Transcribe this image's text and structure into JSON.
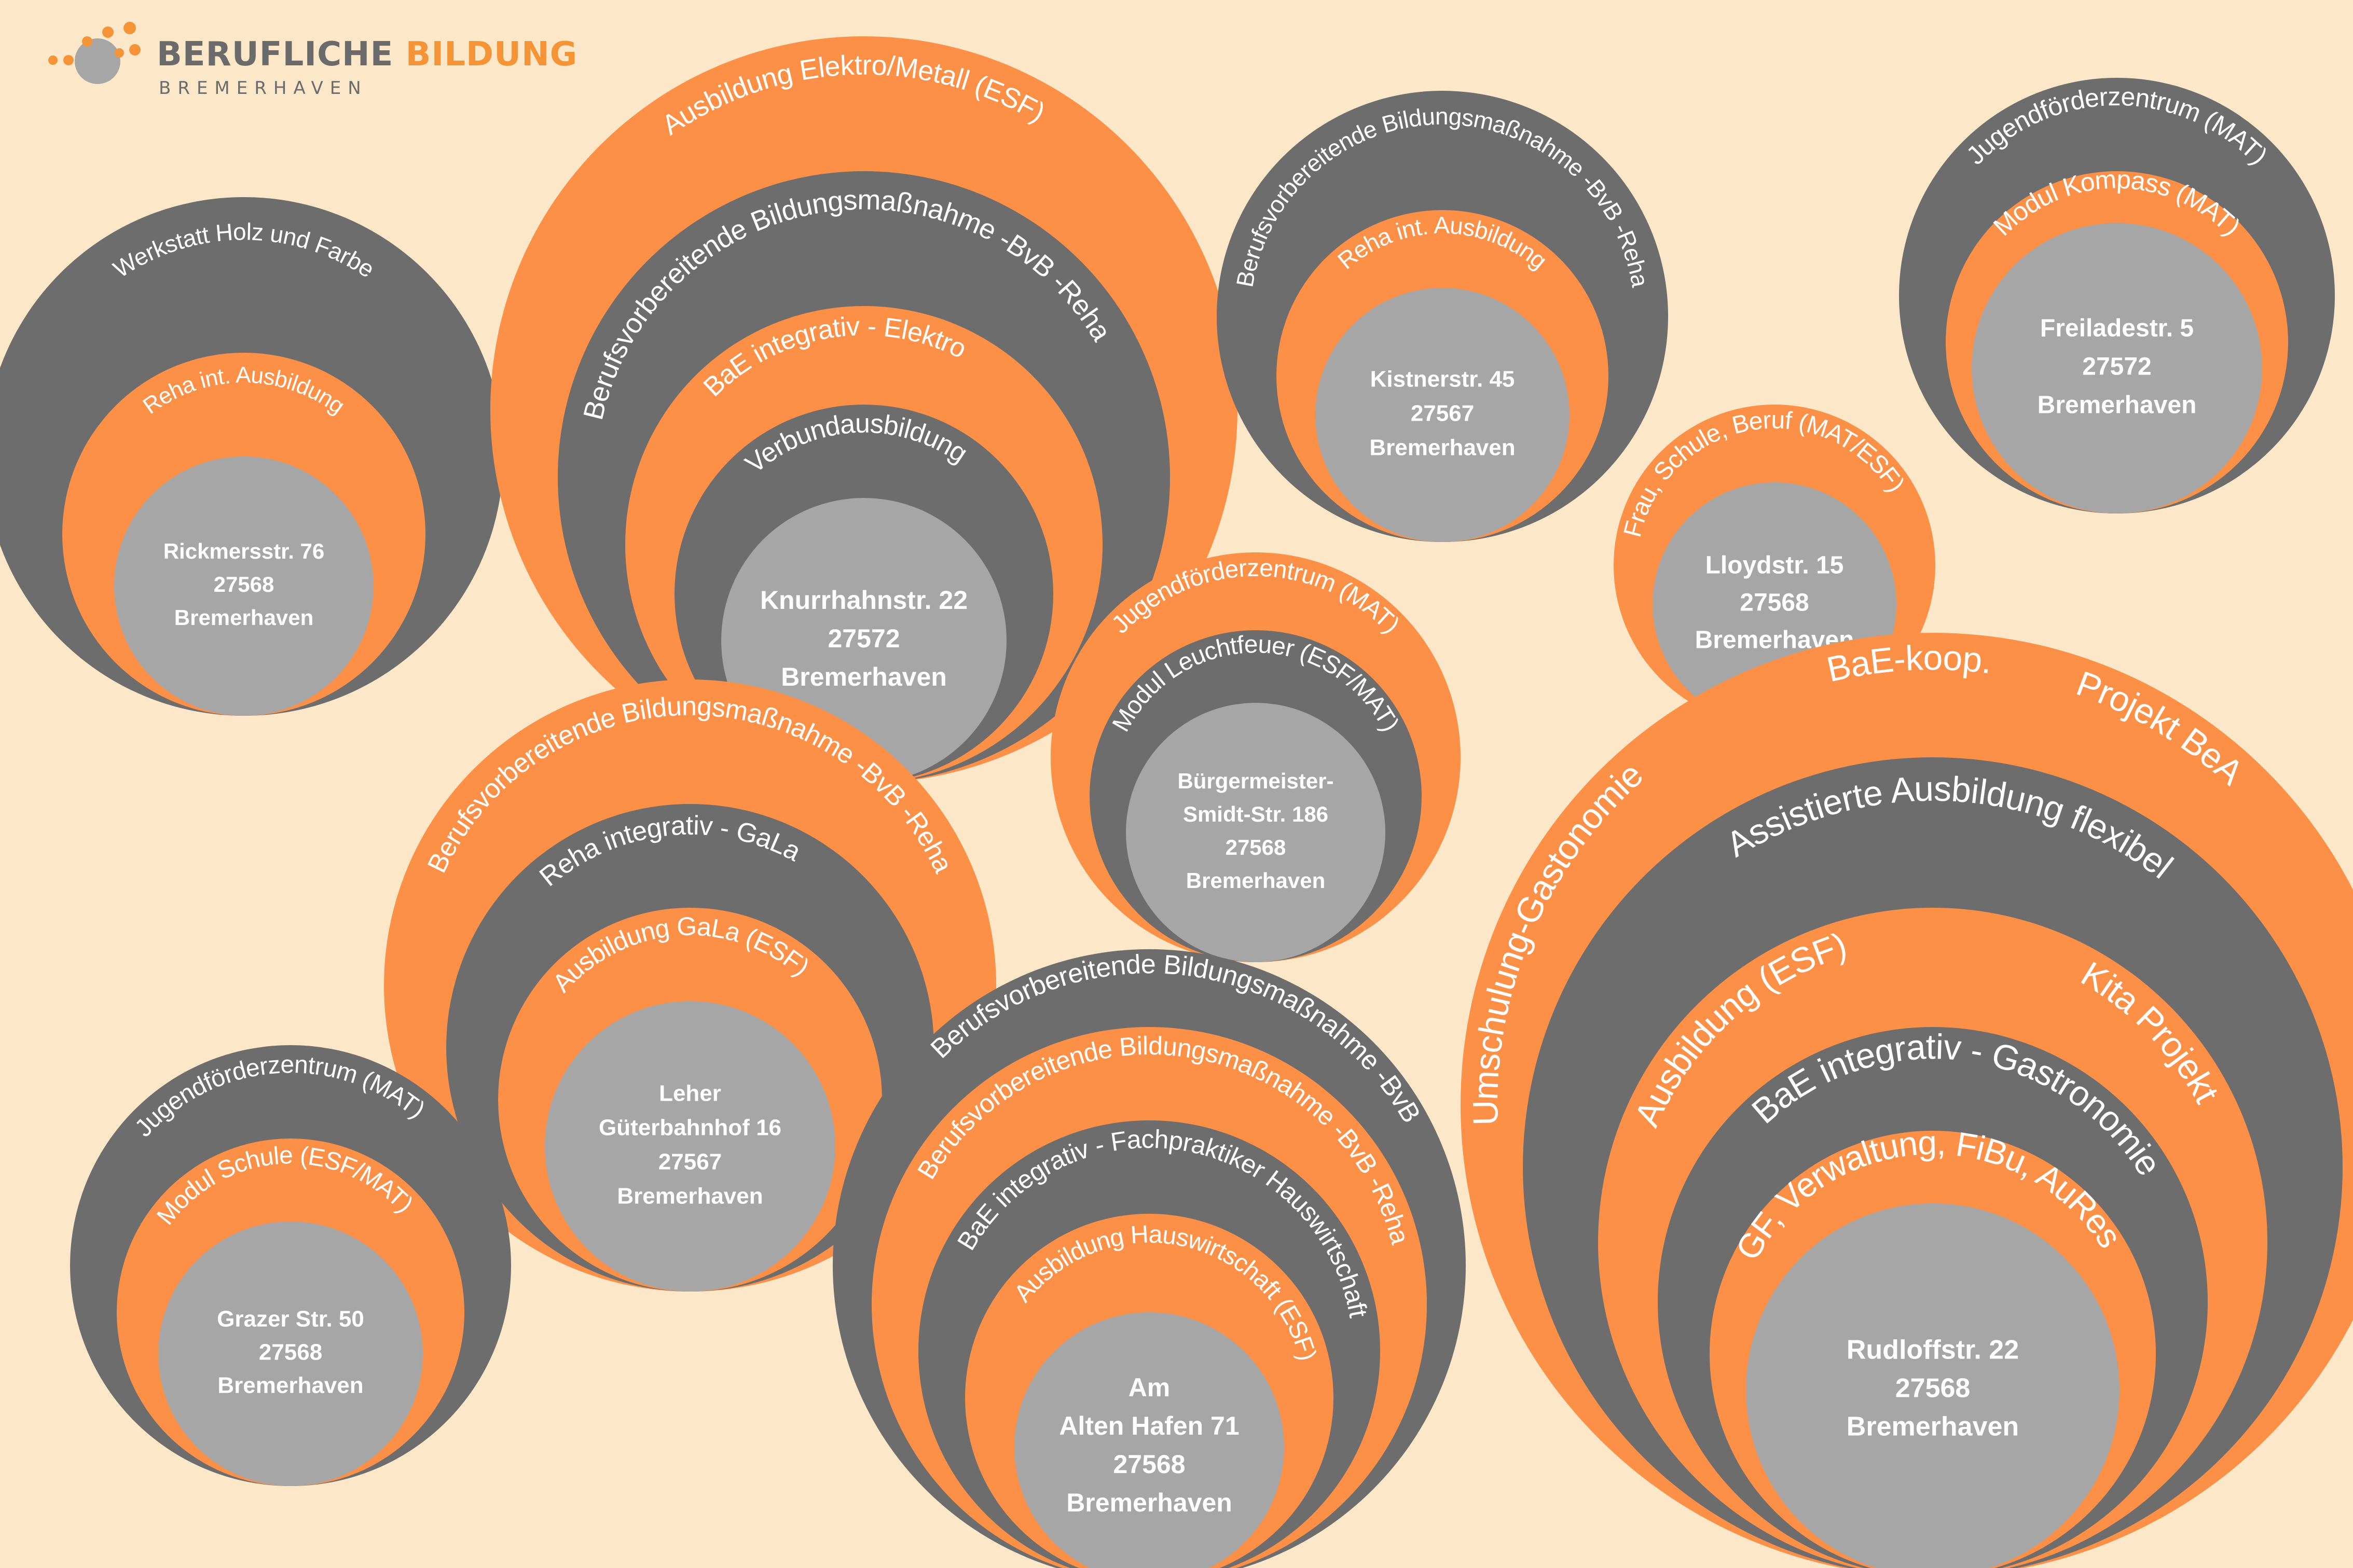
{
  "logo": {
    "word1": "BERUFLICHE",
    "word2": "BILDUNG",
    "subtitle": "BREMERHAVEN",
    "icon": "orange-dots-logo-icon",
    "color_dark": "#6b6b6b",
    "color_accent": "#f59437"
  },
  "colors": {
    "background": "#fce7c9",
    "orange": "#fd9047",
    "dark_gray": "#6d6d6d",
    "light_gray": "#a6a6a6"
  },
  "sites": [
    {
      "id": "rickmersstr",
      "address_lines": [
        "Rickmersstr. 76",
        "27568",
        "Bremerhaven"
      ],
      "rings": [
        {
          "programs": [
            "Werkstatt Holz und Farbe"
          ]
        },
        {
          "programs": [
            "Reha int. Ausbildung"
          ]
        }
      ]
    },
    {
      "id": "knurrhahnstr",
      "address_lines": [
        "Knurrhahnstr. 22",
        "27572",
        "Bremerhaven"
      ],
      "rings": [
        {
          "programs": [
            "Ausbildung  Elektro/Metall (ESF)"
          ]
        },
        {
          "programs": [
            "Berufsvorbereitende Bildungsmaßnahme -BvB -Reha"
          ]
        },
        {
          "programs": [
            "BaE integrativ  - Elektro"
          ]
        },
        {
          "programs": [
            "Verbundausbildung"
          ]
        }
      ]
    },
    {
      "id": "kistnerstr",
      "address_lines": [
        "Kistnerstr. 45",
        "27567",
        "Bremerhaven"
      ],
      "rings": [
        {
          "programs": [
            "Berufsvorbereitende Bildungsmaßnahme -BvB -Reha"
          ]
        },
        {
          "programs": [
            "Reha int. Ausbildung"
          ]
        }
      ]
    },
    {
      "id": "freiladestr",
      "address_lines": [
        "Freiladestr. 5",
        "27572",
        "Bremerhaven"
      ],
      "rings": [
        {
          "programs": [
            "Jugendförderzentrum (MAT)"
          ]
        },
        {
          "programs": [
            "Modul Kompass (MAT)"
          ]
        }
      ]
    },
    {
      "id": "lloydstr",
      "address_lines": [
        "Lloydstr. 15",
        "27568",
        "Bremerhaven"
      ],
      "rings": [
        {
          "programs": [
            "Frau, Schule, Beruf (MAT/ESF)"
          ]
        }
      ]
    },
    {
      "id": "buergermeister-smidt-str",
      "address_lines": [
        "Bürgermeister-",
        "Smidt-Str. 186",
        "27568",
        "Bremerhaven"
      ],
      "rings": [
        {
          "programs": [
            "Jugendförderzentrum (MAT)"
          ]
        },
        {
          "programs": [
            "Modul Leuchtfeuer (ESF/MAT)"
          ]
        }
      ]
    },
    {
      "id": "leher-gueterbahnhof",
      "address_lines": [
        "Leher",
        "Güterbahnhof 16",
        "27567",
        "Bremerhaven"
      ],
      "rings": [
        {
          "programs": [
            "Berufsvorbereitende Bildungsmaßnahme -BvB -Reha"
          ]
        },
        {
          "programs": [
            "Reha  integrativ  - GaLa"
          ]
        },
        {
          "programs": [
            "Ausbildung GaLa (ESF)"
          ]
        }
      ]
    },
    {
      "id": "grazer-str",
      "address_lines": [
        "Grazer Str. 50",
        "27568",
        "Bremerhaven"
      ],
      "rings": [
        {
          "programs": [
            "Jugendförderzentrum (MAT)"
          ]
        },
        {
          "programs": [
            "Modul Schule (ESF/MAT)"
          ]
        }
      ]
    },
    {
      "id": "am-alten-hafen",
      "address_lines": [
        "Am",
        "Alten Hafen 71",
        "27568",
        "Bremerhaven"
      ],
      "rings": [
        {
          "programs": [
            "Berufsvorbereitende Bildungsmaßnahme -BvB"
          ]
        },
        {
          "programs": [
            "Berufsvorbereitende Bildungsmaßnahme -BvB -Reha"
          ]
        },
        {
          "programs": [
            "BaE integrativ  - Fachpraktiker Hauswirtschaft"
          ]
        },
        {
          "programs": [
            "Ausbildung Hauswirtschaft (ESF)"
          ]
        }
      ]
    },
    {
      "id": "rudloffstr",
      "address_lines": [
        "Rudloffstr. 22",
        "27568",
        "Bremerhaven"
      ],
      "rings": [
        {
          "programs": [
            "Umschulung-Gastonomie",
            "BaE-koop.",
            "Projekt BeA"
          ]
        },
        {
          "programs": [
            "Assistierte Ausbildung flexibel"
          ]
        },
        {
          "programs": [
            "Ausbildung (ESF)",
            "Kita Projekt"
          ]
        },
        {
          "programs": [
            "BaE integrativ  -  Gastronomie"
          ]
        },
        {
          "programs": [
            "GF, Verwaltung, FiBu, AuRes"
          ]
        }
      ]
    }
  ]
}
